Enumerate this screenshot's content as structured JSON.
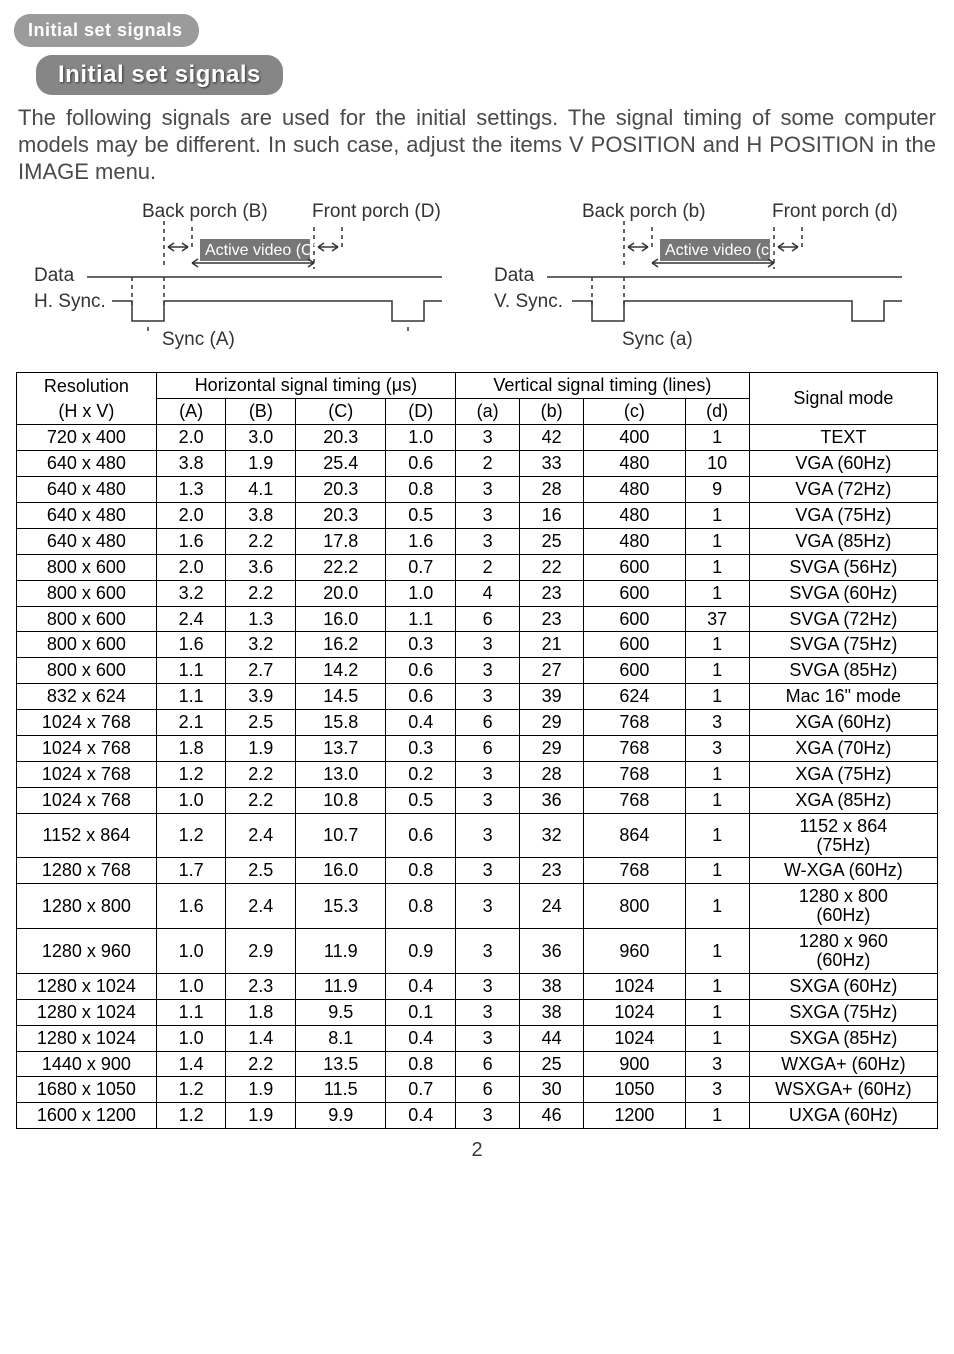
{
  "header_label": "Initial set signals",
  "title_badge": "Initial set signals",
  "paragraph": "The following signals are used for the initial settings. The signal timing of some computer models may be different. In such case, adjust the items V POSITION and H POSITION in the IMAGE menu.",
  "diag_left": {
    "back_porch": "Back porch (B)",
    "front_porch": "Front porch (D)",
    "active_video": "Active video (C)",
    "data": "Data",
    "sync_line": "H. Sync.",
    "sync_label": "Sync (A)"
  },
  "diag_right": {
    "back_porch": "Back porch (b)",
    "front_porch": "Front porch (d)",
    "active_video": "Active video (c)",
    "data": "Data",
    "sync_line": "V. Sync.",
    "sync_label": "Sync (a)"
  },
  "table": {
    "res_label": "Resolution",
    "hxv_label": "(H x V)",
    "hgroup": "Horizontal signal timing (μs)",
    "vgroup": "Vertical signal timing (lines)",
    "sig_label": "Signal mode",
    "hsubs": [
      "(A)",
      "(B)",
      "(C)",
      "(D)"
    ],
    "vsubs": [
      "(a)",
      "(b)",
      "(c)",
      "(d)"
    ],
    "rows": [
      {
        "res": "720 x 400",
        "A": "2.0",
        "B": "3.0",
        "C": "20.3",
        "D": "1.0",
        "a": "3",
        "b": "42",
        "c": "400",
        "d": "1",
        "mode": "TEXT"
      },
      {
        "res": "640 x 480",
        "A": "3.8",
        "B": "1.9",
        "C": "25.4",
        "D": "0.6",
        "a": "2",
        "b": "33",
        "c": "480",
        "d": "10",
        "mode": "VGA (60Hz)"
      },
      {
        "res": "640 x 480",
        "A": "1.3",
        "B": "4.1",
        "C": "20.3",
        "D": "0.8",
        "a": "3",
        "b": "28",
        "c": "480",
        "d": "9",
        "mode": "VGA (72Hz)"
      },
      {
        "res": "640 x 480",
        "A": "2.0",
        "B": "3.8",
        "C": "20.3",
        "D": "0.5",
        "a": "3",
        "b": "16",
        "c": "480",
        "d": "1",
        "mode": "VGA (75Hz)"
      },
      {
        "res": "640 x 480",
        "A": "1.6",
        "B": "2.2",
        "C": "17.8",
        "D": "1.6",
        "a": "3",
        "b": "25",
        "c": "480",
        "d": "1",
        "mode": "VGA (85Hz)"
      },
      {
        "res": "800 x 600",
        "A": "2.0",
        "B": "3.6",
        "C": "22.2",
        "D": "0.7",
        "a": "2",
        "b": "22",
        "c": "600",
        "d": "1",
        "mode": "SVGA (56Hz)"
      },
      {
        "res": "800 x 600",
        "A": "3.2",
        "B": "2.2",
        "C": "20.0",
        "D": "1.0",
        "a": "4",
        "b": "23",
        "c": "600",
        "d": "1",
        "mode": "SVGA (60Hz)"
      },
      {
        "res": "800 x 600",
        "A": "2.4",
        "B": "1.3",
        "C": "16.0",
        "D": "1.1",
        "a": "6",
        "b": "23",
        "c": "600",
        "d": "37",
        "mode": "SVGA (72Hz)"
      },
      {
        "res": "800 x 600",
        "A": "1.6",
        "B": "3.2",
        "C": "16.2",
        "D": "0.3",
        "a": "3",
        "b": "21",
        "c": "600",
        "d": "1",
        "mode": "SVGA (75Hz)"
      },
      {
        "res": "800 x 600",
        "A": "1.1",
        "B": "2.7",
        "C": "14.2",
        "D": "0.6",
        "a": "3",
        "b": "27",
        "c": "600",
        "d": "1",
        "mode": "SVGA (85Hz)"
      },
      {
        "res": "832 x 624",
        "A": "1.1",
        "B": "3.9",
        "C": "14.5",
        "D": "0.6",
        "a": "3",
        "b": "39",
        "c": "624",
        "d": "1",
        "mode": "Mac 16\" mode"
      },
      {
        "res": "1024 x 768",
        "A": "2.1",
        "B": "2.5",
        "C": "15.8",
        "D": "0.4",
        "a": "6",
        "b": "29",
        "c": "768",
        "d": "3",
        "mode": "XGA (60Hz)"
      },
      {
        "res": "1024 x 768",
        "A": "1.8",
        "B": "1.9",
        "C": "13.7",
        "D": "0.3",
        "a": "6",
        "b": "29",
        "c": "768",
        "d": "3",
        "mode": "XGA (70Hz)"
      },
      {
        "res": "1024 x 768",
        "A": "1.2",
        "B": "2.2",
        "C": "13.0",
        "D": "0.2",
        "a": "3",
        "b": "28",
        "c": "768",
        "d": "1",
        "mode": "XGA (75Hz)"
      },
      {
        "res": "1024 x 768",
        "A": "1.0",
        "B": "2.2",
        "C": "10.8",
        "D": "0.5",
        "a": "3",
        "b": "36",
        "c": "768",
        "d": "1",
        "mode": "XGA (85Hz)"
      },
      {
        "res": "1152 x 864",
        "A": "1.2",
        "B": "2.4",
        "C": "10.7",
        "D": "0.6",
        "a": "3",
        "b": "32",
        "c": "864",
        "d": "1",
        "mode": "1152 x 864\n(75Hz)"
      },
      {
        "res": "1280 x 768",
        "A": "1.7",
        "B": "2.5",
        "C": "16.0",
        "D": "0.8",
        "a": "3",
        "b": "23",
        "c": "768",
        "d": "1",
        "mode": "W-XGA (60Hz)"
      },
      {
        "res": "1280 x 800",
        "A": "1.6",
        "B": "2.4",
        "C": "15.3",
        "D": "0.8",
        "a": "3",
        "b": "24",
        "c": "800",
        "d": "1",
        "mode": "1280 x 800\n(60Hz)"
      },
      {
        "res": "1280 x 960",
        "A": "1.0",
        "B": "2.9",
        "C": "11.9",
        "D": "0.9",
        "a": "3",
        "b": "36",
        "c": "960",
        "d": "1",
        "mode": "1280 x 960\n(60Hz)"
      },
      {
        "res": "1280 x 1024",
        "A": "1.0",
        "B": "2.3",
        "C": "11.9",
        "D": "0.4",
        "a": "3",
        "b": "38",
        "c": "1024",
        "d": "1",
        "mode": "SXGA (60Hz)"
      },
      {
        "res": "1280 x 1024",
        "A": "1.1",
        "B": "1.8",
        "C": "9.5",
        "D": "0.1",
        "a": "3",
        "b": "38",
        "c": "1024",
        "d": "1",
        "mode": "SXGA (75Hz)"
      },
      {
        "res": "1280 x 1024",
        "A": "1.0",
        "B": "1.4",
        "C": "8.1",
        "D": "0.4",
        "a": "3",
        "b": "44",
        "c": "1024",
        "d": "1",
        "mode": "SXGA (85Hz)"
      },
      {
        "res": "1440 x 900",
        "A": "1.4",
        "B": "2.2",
        "C": "13.5",
        "D": "0.8",
        "a": "6",
        "b": "25",
        "c": "900",
        "d": "3",
        "mode": "WXGA+ (60Hz)"
      },
      {
        "res": "1680 x 1050",
        "A": "1.2",
        "B": "1.9",
        "C": "11.5",
        "D": "0.7",
        "a": "6",
        "b": "30",
        "c": "1050",
        "d": "3",
        "mode": "WSXGA+ (60Hz)"
      },
      {
        "res": "1600 x 1200",
        "A": "1.2",
        "B": "1.9",
        "C": "9.9",
        "D": "0.4",
        "a": "3",
        "b": "46",
        "c": "1200",
        "d": "1",
        "mode": "UXGA (60Hz)"
      }
    ]
  },
  "page_number": "2"
}
